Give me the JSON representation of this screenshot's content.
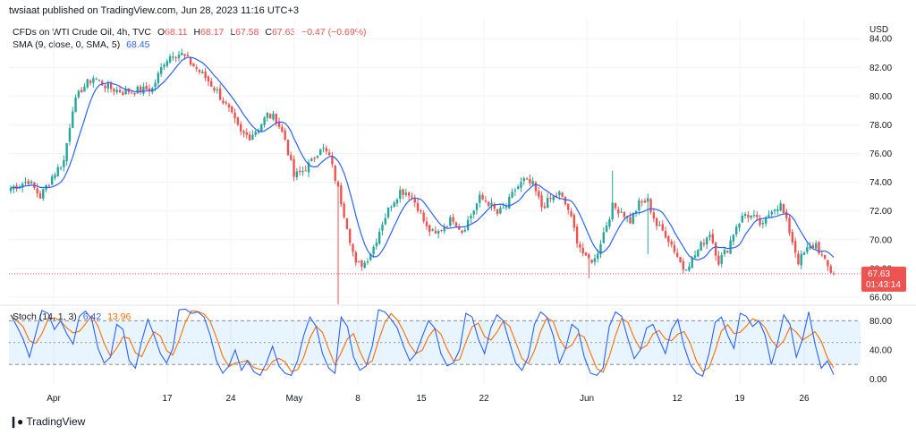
{
  "publisher_line": "twsiaat published on TradingView.com, Jun 28, 2023 11:16 UTC+3",
  "legend": {
    "symbol": "CFDs on WTI Crude Oil, 4h, TVC",
    "o_label": "O",
    "o_value": "68.11",
    "h_label": "H",
    "h_value": "68.17",
    "l_label": "L",
    "l_value": "67.58",
    "c_label": "C",
    "c_value": "67.63",
    "change": "−0.47 (−0.69%)",
    "sma_label": "SMA (9, close, 0, SMA, 5)",
    "sma_value": "68.45",
    "stoch_label": "Stoch (14, 1, 3)",
    "stoch_k": "6.42",
    "stoch_d": "13.96"
  },
  "currency": "USD",
  "footer_brand": "TradingView",
  "chart_data": [
    {
      "type": "candlestick",
      "title": "CFDs on WTI Crude Oil, 4h, TVC",
      "ylabel": "USD",
      "y_ticks": [
        "66.00",
        "68.00",
        "70.00",
        "72.00",
        "74.00",
        "76.00",
        "78.00",
        "80.00",
        "82.00",
        "84.00"
      ],
      "ylim": [
        65.5,
        84.2
      ],
      "x_ticks": [
        "Apr",
        "17",
        "24",
        "May",
        "8",
        "15",
        "22",
        "Jun",
        "12",
        "19",
        "26"
      ],
      "current_price": "67.63",
      "countdown": "01:43:14",
      "grid": true,
      "series_name": "SMA (9, close, 0, SMA, 5)",
      "anchors": [
        [
          0,
          73.6
        ],
        [
          6,
          74.1
        ],
        [
          10,
          73.0
        ],
        [
          14,
          74.4
        ],
        [
          18,
          75.5
        ],
        [
          21,
          79.2
        ],
        [
          24,
          80.5
        ],
        [
          28,
          81.3
        ],
        [
          33,
          80.6
        ],
        [
          38,
          80.3
        ],
        [
          43,
          80.4
        ],
        [
          48,
          80.5
        ],
        [
          52,
          82.4
        ],
        [
          55,
          83.0
        ],
        [
          58,
          82.9
        ],
        [
          62,
          82.1
        ],
        [
          66,
          81.3
        ],
        [
          70,
          80.3
        ],
        [
          74,
          79.0
        ],
        [
          78,
          77.4
        ],
        [
          81,
          77.2
        ],
        [
          84,
          77.8
        ],
        [
          87,
          78.7
        ],
        [
          90,
          78.4
        ],
        [
          93,
          77.0
        ],
        [
          96,
          74.4
        ],
        [
          99,
          74.8
        ],
        [
          102,
          75.4
        ],
        [
          105,
          76.5
        ],
        [
          108,
          75.8
        ],
        [
          111,
          73.5
        ],
        [
          114,
          71.0
        ],
        [
          117,
          68.2
        ],
        [
          120,
          68.4
        ],
        [
          123,
          69.5
        ],
        [
          126,
          71.2
        ],
        [
          129,
          72.5
        ],
        [
          132,
          73.4
        ],
        [
          135,
          73.3
        ],
        [
          138,
          72.3
        ],
        [
          141,
          70.8
        ],
        [
          144,
          70.3
        ],
        [
          147,
          71.0
        ],
        [
          150,
          71.5
        ],
        [
          153,
          70.6
        ],
        [
          156,
          71.7
        ],
        [
          159,
          72.9
        ],
        [
          162,
          72.6
        ],
        [
          165,
          71.8
        ],
        [
          168,
          72.3
        ],
        [
          171,
          73.5
        ],
        [
          174,
          74.1
        ],
        [
          177,
          73.8
        ],
        [
          180,
          72.3
        ],
        [
          183,
          72.8
        ],
        [
          186,
          73.2
        ],
        [
          189,
          72.1
        ],
        [
          192,
          70.0
        ],
        [
          195,
          68.6
        ],
        [
          198,
          68.6
        ],
        [
          201,
          70.5
        ],
        [
          204,
          72.3
        ],
        [
          207,
          72.0
        ],
        [
          210,
          71.3
        ],
        [
          213,
          72.5
        ],
        [
          216,
          72.7
        ],
        [
          219,
          71.0
        ],
        [
          222,
          70.4
        ],
        [
          225,
          69.3
        ],
        [
          228,
          68.0
        ],
        [
          231,
          68.6
        ],
        [
          234,
          69.6
        ],
        [
          237,
          70.5
        ],
        [
          240,
          68.5
        ],
        [
          243,
          69.4
        ],
        [
          246,
          71.0
        ],
        [
          249,
          71.8
        ],
        [
          252,
          71.5
        ],
        [
          255,
          70.9
        ],
        [
          258,
          72.2
        ],
        [
          261,
          72.4
        ],
        [
          264,
          70.6
        ],
        [
          267,
          68.5
        ],
        [
          270,
          69.3
        ],
        [
          273,
          69.7
        ],
        [
          276,
          68.4
        ],
        [
          278,
          67.8
        ],
        [
          279,
          67.63
        ]
      ],
      "spikes": [
        [
          111,
          70.2,
          65.5
        ],
        [
          196,
          68.6,
          67.3
        ],
        [
          204,
          74.8,
          72.0
        ],
        [
          216,
          70.6,
          69.0
        ]
      ]
    },
    {
      "type": "line",
      "title": "Stoch (14, 1, 3)",
      "y_ticks": [
        "0.00",
        "40.00",
        "80.00"
      ],
      "ylim": [
        -8,
        100
      ],
      "band": [
        20,
        80
      ],
      "midline": 50,
      "series": [
        {
          "name": "%K",
          "value": "6.42",
          "color": "#2962ff"
        },
        {
          "name": "%D",
          "value": "13.96",
          "color": "#ff6d00"
        }
      ],
      "k_values": [
        88,
        72,
        55,
        30,
        62,
        94,
        90,
        68,
        80,
        62,
        48,
        86,
        93,
        82,
        42,
        22,
        30,
        75,
        68,
        25,
        15,
        52,
        82,
        60,
        35,
        22,
        42,
        95,
        96,
        90,
        92,
        85,
        60,
        25,
        8,
        18,
        40,
        12,
        25,
        10,
        5,
        22,
        45,
        18,
        8,
        5,
        25,
        60,
        85,
        72,
        35,
        15,
        8,
        85,
        72,
        30,
        12,
        18,
        45,
        95,
        92,
        82,
        70,
        45,
        25,
        35,
        58,
        80,
        70,
        35,
        18,
        22,
        40,
        90,
        85,
        55,
        35,
        70,
        88,
        80,
        50,
        22,
        12,
        30,
        75,
        92,
        85,
        60,
        22,
        42,
        75,
        68,
        30,
        8,
        5,
        15,
        72,
        92,
        86,
        55,
        28,
        40,
        70,
        75,
        55,
        35,
        68,
        82,
        45,
        20,
        8,
        4,
        35,
        78,
        85,
        60,
        42,
        90,
        86,
        72,
        80,
        60,
        20,
        50,
        88,
        75,
        30,
        55,
        92,
        48,
        15,
        25,
        6
      ]
    }
  ]
}
